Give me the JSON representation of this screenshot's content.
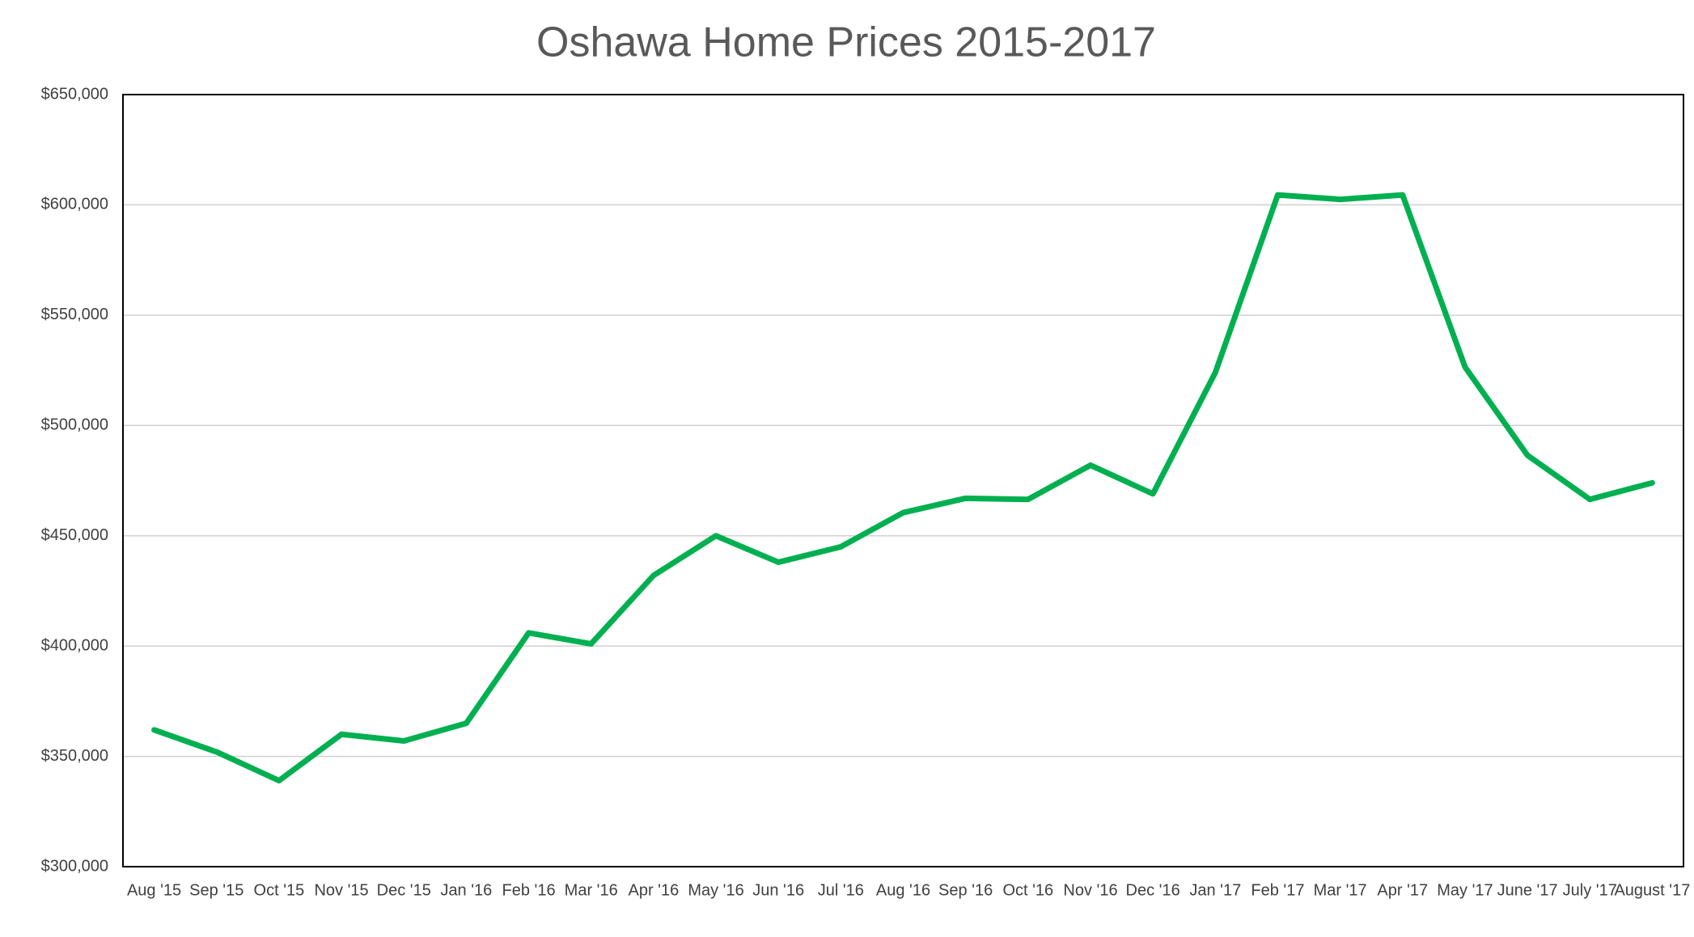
{
  "chart_data": {
    "type": "line",
    "title": "Oshawa Home Prices 2015-2017",
    "categories": [
      "Aug '15",
      "Sep '15",
      "Oct '15",
      "Nov '15",
      "Dec '15",
      "Jan '16",
      "Feb '16",
      "Mar '16",
      "Apr '16",
      "May '16",
      "Jun '16",
      "Jul '16",
      "Aug '16",
      "Sep '16",
      "Oct '16",
      "Nov '16",
      "Dec '16",
      "Jan '17",
      "Feb '17",
      "Mar '17",
      "Apr '17",
      "May '17",
      "June '17",
      "July '17",
      "August '17"
    ],
    "values": [
      362000,
      352000,
      339000,
      360000,
      357000,
      365000,
      406000,
      401000,
      432000,
      450000,
      438000,
      445000,
      460500,
      467000,
      466500,
      482000,
      469000,
      524000,
      604500,
      602500,
      604500,
      526500,
      486500,
      466500,
      474000
    ],
    "color": "#00b050",
    "ylim": [
      300000,
      650000
    ],
    "yticks": [
      {
        "value": 300000,
        "label": "$300,000"
      },
      {
        "value": 350000,
        "label": "$350,000"
      },
      {
        "value": 400000,
        "label": "$400,000"
      },
      {
        "value": 450000,
        "label": "$450,000"
      },
      {
        "value": 500000,
        "label": "$500,000"
      },
      {
        "value": 550000,
        "label": "$550,000"
      },
      {
        "value": 600000,
        "label": "$600,000"
      },
      {
        "value": 650000,
        "label": "$650,000"
      }
    ],
    "grid": true
  }
}
